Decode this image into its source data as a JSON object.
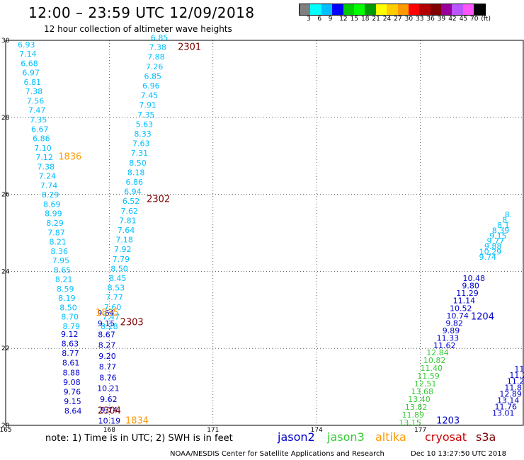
{
  "header": {
    "title": "12:00 – 23:59 UTC 12/09/2018",
    "subtitle": "12 hour collection of altimeter wave heights"
  },
  "colorbar": {
    "colors": [
      "#7f7f7f",
      "#00ffff",
      "#00bfff",
      "#0000ff",
      "#00cd00",
      "#00ff00",
      "#009900",
      "#ffff00",
      "#ffcc00",
      "#ff9900",
      "#ff0000",
      "#b20000",
      "#800000",
      "#990099",
      "#bb55ff",
      "#ff55ff",
      "#000000"
    ],
    "labels": [
      "3",
      "6",
      "9",
      "12",
      "15",
      "18",
      "21",
      "24",
      "27",
      "30",
      "33",
      "36",
      "39",
      "42",
      "45",
      "70",
      "(ft)"
    ]
  },
  "map": {
    "lon_ticks": [
      "165",
      "168",
      "171",
      "174",
      "177"
    ],
    "lat_ticks": [
      "30",
      "28",
      "26",
      "24",
      "22",
      "20"
    ],
    "colors": {
      "cyan": "#00bfff",
      "blue": "#0000cd",
      "green": "#33cc33",
      "orange": "#ff9900",
      "darkred": "#800000"
    },
    "track_labels": [
      {
        "text": "2301",
        "lon": 170.32,
        "lat": 29.75,
        "color": "darkred"
      },
      {
        "text": "1836",
        "lon": 166.86,
        "lat": 26.9,
        "color": "orange"
      },
      {
        "text": "2302",
        "lon": 169.42,
        "lat": 25.8,
        "color": "darkred"
      },
      {
        "text": "1835",
        "lon": 167.94,
        "lat": 22.85,
        "color": "orange"
      },
      {
        "text": "2303",
        "lon": 168.65,
        "lat": 22.6,
        "color": "darkred"
      },
      {
        "text": "2304",
        "lon": 168.0,
        "lat": 20.3,
        "color": "darkred"
      },
      {
        "text": "1834",
        "lon": 168.8,
        "lat": 20.05,
        "color": "orange"
      },
      {
        "text": "1204",
        "lon": 178.8,
        "lat": 22.75,
        "color": "blue"
      },
      {
        "text": "1203",
        "lon": 177.8,
        "lat": 20.05,
        "color": "blue"
      }
    ],
    "tracks": [
      {
        "name": "t1",
        "color": "cyan",
        "lon_start": 165.6,
        "lat_start": 29.82,
        "lon_end": 166.9,
        "lat_end": 22.5,
        "values": [
          "6.93",
          "7.14",
          "6.68",
          "6.97",
          "6.81",
          "7.38",
          "7.56",
          "7.47",
          "7.35",
          "6.67",
          "6.86",
          "7.10",
          "7.12",
          "7.38",
          "7.24",
          "7.74",
          "8.29",
          "8.69",
          "8.99",
          "8.29",
          "7.87",
          "8.21",
          "8.36",
          "7.95",
          "8.65",
          "8.21",
          "8.59",
          "8.19",
          "8.50",
          "8.70",
          "8.79"
        ]
      },
      {
        "name": "t1b",
        "color": "blue",
        "lon_start": 166.85,
        "lat_start": 22.3,
        "lon_end": 166.95,
        "lat_end": 20.3,
        "values": [
          "9.12",
          "8.63",
          "8.77",
          "8.61",
          "8.88",
          "9.08",
          "9.76",
          "9.15",
          "8.64"
        ]
      },
      {
        "name": "t2",
        "color": "cyan",
        "lon_start": 169.45,
        "lat_start": 30.0,
        "lon_end": 168.0,
        "lat_end": 22.5,
        "values": [
          "6.85",
          "7.38",
          "7.88",
          "7.26",
          "6.85",
          "6.96",
          "7.45",
          "7.91",
          "7.35",
          "5.63",
          "8.33",
          "7.63",
          "7.31",
          "8.50",
          "8.18",
          "6.86",
          "6.94",
          "6.52",
          "7.62",
          "7.81",
          "7.64",
          "7.18",
          "7.92",
          "7.79",
          "8.50",
          "8.45",
          "8.53",
          "7.77",
          "7.60",
          "7.47",
          "8.28"
        ]
      },
      {
        "name": "t2b",
        "color": "blue",
        "lon_start": 167.9,
        "lat_start": 22.85,
        "lon_end": 168.0,
        "lat_end": 20.05,
        "values": [
          "9.64",
          "9.15",
          "8.67",
          "8.27",
          "9.20",
          "8.77",
          "8.76",
          "10.21",
          "9.62",
          "9.74",
          "10.19"
        ]
      },
      {
        "name": "t3",
        "color": "cyan",
        "lon_start": 179.55,
        "lat_start": 25.4,
        "lon_end": 178.95,
        "lat_end": 24.3,
        "values": [
          "8.",
          "8.",
          "8.1",
          "8.39",
          "9.15",
          "9.77",
          "9.88",
          "10.29",
          "9.74"
        ]
      },
      {
        "name": "t3b",
        "color": "blue",
        "lon_start": 178.55,
        "lat_start": 23.75,
        "lon_end": 177.7,
        "lat_end": 22.0,
        "values": [
          "10.48",
          "9.80",
          "11.29",
          "11.14",
          "10.52",
          "10.74",
          "9.82",
          "9.89",
          "11.33",
          "11.62"
        ]
      },
      {
        "name": "t3c",
        "color": "green",
        "lon_start": 177.5,
        "lat_start": 21.82,
        "lon_end": 176.7,
        "lat_end": 20.0,
        "values": [
          "12.84",
          "10.82",
          "11.40",
          "11.59",
          "12.51",
          "13.68",
          "13.40",
          "13.82",
          "11.89",
          "13.15"
        ]
      },
      {
        "name": "t4",
        "color": "blue",
        "lon_start": 179.9,
        "lat_start": 21.4,
        "lon_end": 179.4,
        "lat_end": 20.25,
        "values": [
          "11.",
          "11.2",
          "11.2",
          "11.8",
          "12.89",
          "13.14",
          "11.76",
          "13.01"
        ]
      }
    ]
  },
  "footer": {
    "note": "note:  1) Time is in UTC;  2) SWH is in feet",
    "sats": [
      {
        "name": "jason2",
        "color": "#0000cd"
      },
      {
        "name": "jason3",
        "color": "#33cc33"
      },
      {
        "name": "altika",
        "color": "#ff9900"
      },
      {
        "name": "cryosat",
        "color": "#cc0000"
      },
      {
        "name": "s3a",
        "color": "#800000"
      }
    ],
    "credit": "NOAA/NESDIS Center for Satellite Applications and Research",
    "stamp": "Dec 10 13:27:50 UTC 2018"
  }
}
